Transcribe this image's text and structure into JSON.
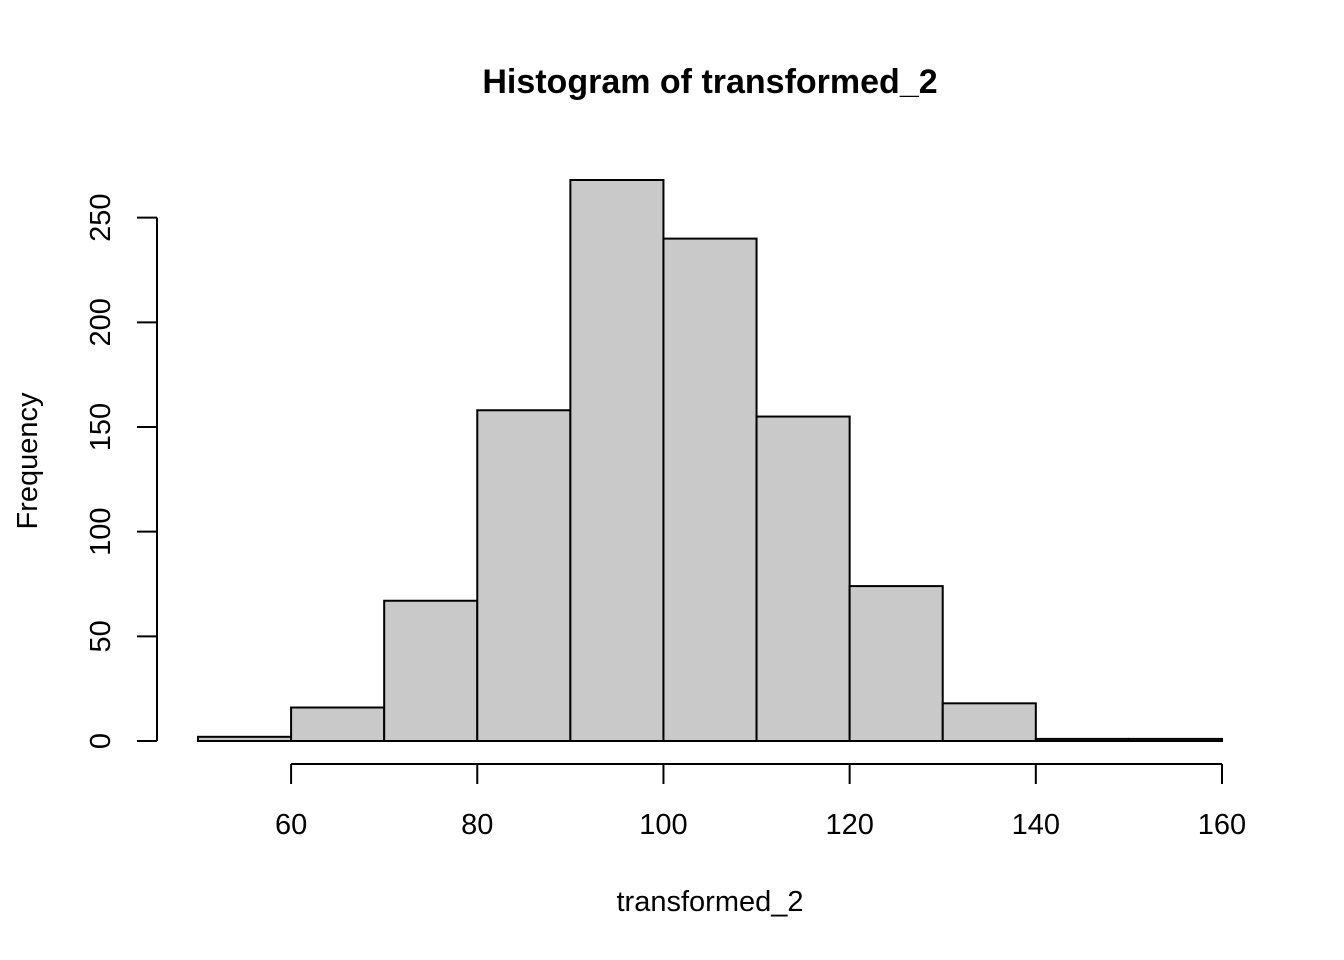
{
  "chart_data": {
    "type": "bar",
    "title": "Histogram of transformed_2",
    "xlabel": "transformed_2",
    "ylabel": "Frequency",
    "bins": [
      {
        "from": 50,
        "to": 60,
        "count": 2
      },
      {
        "from": 60,
        "to": 70,
        "count": 16
      },
      {
        "from": 70,
        "to": 80,
        "count": 67
      },
      {
        "from": 80,
        "to": 90,
        "count": 158
      },
      {
        "from": 90,
        "to": 100,
        "count": 268
      },
      {
        "from": 100,
        "to": 110,
        "count": 240
      },
      {
        "from": 110,
        "to": 120,
        "count": 155
      },
      {
        "from": 120,
        "to": 130,
        "count": 74
      },
      {
        "from": 130,
        "to": 140,
        "count": 18
      },
      {
        "from": 140,
        "to": 150,
        "count": 1
      },
      {
        "from": 150,
        "to": 160,
        "count": 1
      }
    ],
    "x_ticks": [
      60,
      80,
      100,
      120,
      140,
      160
    ],
    "y_ticks": [
      0,
      50,
      100,
      150,
      200,
      250
    ],
    "xlim": [
      50,
      160
    ],
    "ylim": [
      0,
      268
    ],
    "grid": false,
    "bar_color": "#c9c9c9",
    "border_color": "#000000"
  }
}
